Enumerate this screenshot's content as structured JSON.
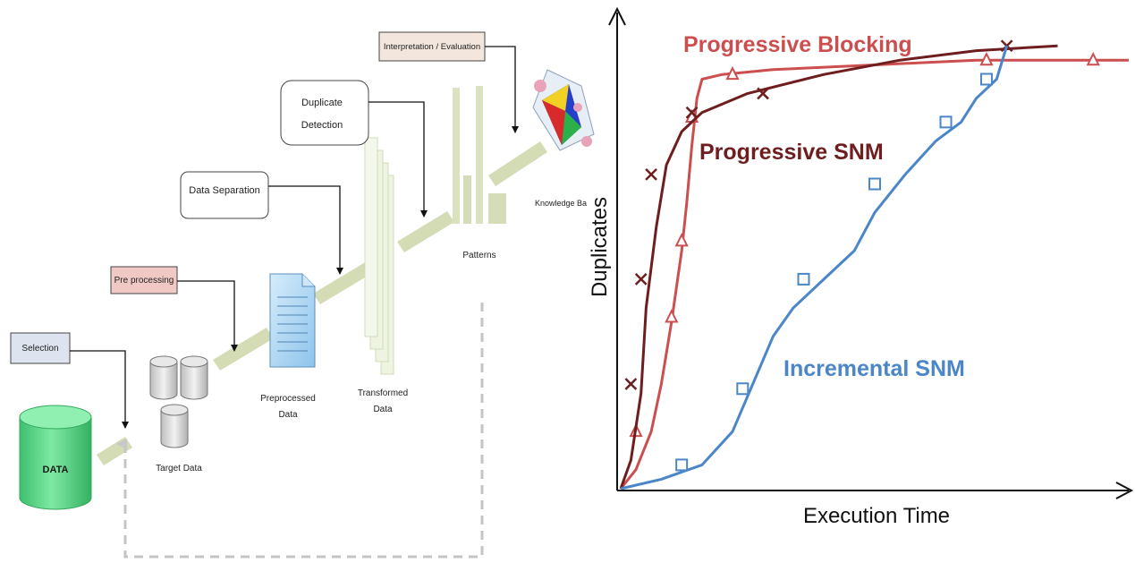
{
  "kdd": {
    "data_label": "DATA",
    "target_data_label": "Target Data",
    "preprocessed_line1": "Preprocessed",
    "preprocessed_line2": "Data",
    "transformed_line1": "Transformed",
    "transformed_line2": "Data",
    "patterns_label": "Patterns",
    "knowledge_label": "Knowledge Ba",
    "steps": {
      "selection": "Selection",
      "pre_processing": "Pre processing",
      "data_separation": "Data Separation",
      "duplicate_line1": "Duplicate",
      "duplicate_line2": "Detection",
      "interpretation": "Interpretation / Evaluation"
    },
    "colors": {
      "data_cylinder": "#5ed68a",
      "selection_box": "#dde4f0",
      "preprocessing_box": "#f0c8c4",
      "interpretation_box": "#f3e6dc",
      "arrow_band": "#d3dcb5",
      "doc_fill": "#a9d3f2"
    }
  },
  "chart_data": {
    "type": "line",
    "xlabel": "Execution Time",
    "ylabel": "Duplicates",
    "grid": false,
    "axis_tick_labels": false,
    "series": [
      {
        "name": "Progressive Blocking",
        "color": "#cc4f4f",
        "marker": "triangle",
        "points": [
          [
            0,
            0
          ],
          [
            0.03,
            0.04
          ],
          [
            0.06,
            0.12
          ],
          [
            0.08,
            0.22
          ],
          [
            0.1,
            0.35
          ],
          [
            0.12,
            0.5
          ],
          [
            0.13,
            0.6
          ],
          [
            0.14,
            0.72
          ],
          [
            0.15,
            0.82
          ],
          [
            0.16,
            0.86
          ],
          [
            0.2,
            0.87
          ],
          [
            0.3,
            0.88
          ],
          [
            0.5,
            0.89
          ],
          [
            0.7,
            0.9
          ],
          [
            0.85,
            0.9
          ],
          [
            1.0,
            0.9
          ]
        ],
        "marker_points": [
          [
            0.03,
            0.12
          ],
          [
            0.1,
            0.36
          ],
          [
            0.12,
            0.52
          ],
          [
            0.14,
            0.78
          ],
          [
            0.22,
            0.87
          ],
          [
            0.72,
            0.9
          ],
          [
            0.93,
            0.9
          ]
        ]
      },
      {
        "name": "Progressive SNM",
        "color": "#6e1e1e",
        "marker": "x",
        "points": [
          [
            0,
            0
          ],
          [
            0.02,
            0.06
          ],
          [
            0.04,
            0.2
          ],
          [
            0.05,
            0.38
          ],
          [
            0.07,
            0.55
          ],
          [
            0.09,
            0.68
          ],
          [
            0.12,
            0.75
          ],
          [
            0.16,
            0.79
          ],
          [
            0.25,
            0.83
          ],
          [
            0.4,
            0.87
          ],
          [
            0.55,
            0.9
          ],
          [
            0.7,
            0.92
          ],
          [
            0.86,
            0.93
          ]
        ],
        "marker_points": [
          [
            0.02,
            0.22
          ],
          [
            0.04,
            0.44
          ],
          [
            0.06,
            0.66
          ],
          [
            0.14,
            0.79
          ],
          [
            0.28,
            0.83
          ],
          [
            0.76,
            0.93
          ]
        ]
      },
      {
        "name": "Incremental SNM",
        "color": "#4a86c8",
        "marker": "square",
        "points": [
          [
            0,
            0
          ],
          [
            0.08,
            0.02
          ],
          [
            0.16,
            0.05
          ],
          [
            0.22,
            0.12
          ],
          [
            0.26,
            0.22
          ],
          [
            0.3,
            0.32
          ],
          [
            0.34,
            0.38
          ],
          [
            0.4,
            0.44
          ],
          [
            0.46,
            0.5
          ],
          [
            0.5,
            0.58
          ],
          [
            0.56,
            0.66
          ],
          [
            0.62,
            0.73
          ],
          [
            0.67,
            0.77
          ],
          [
            0.7,
            0.82
          ],
          [
            0.74,
            0.86
          ],
          [
            0.76,
            0.93
          ]
        ],
        "marker_points": [
          [
            0.12,
            0.05
          ],
          [
            0.24,
            0.21
          ],
          [
            0.36,
            0.44
          ],
          [
            0.5,
            0.64
          ],
          [
            0.64,
            0.77
          ],
          [
            0.72,
            0.86
          ]
        ]
      }
    ]
  }
}
